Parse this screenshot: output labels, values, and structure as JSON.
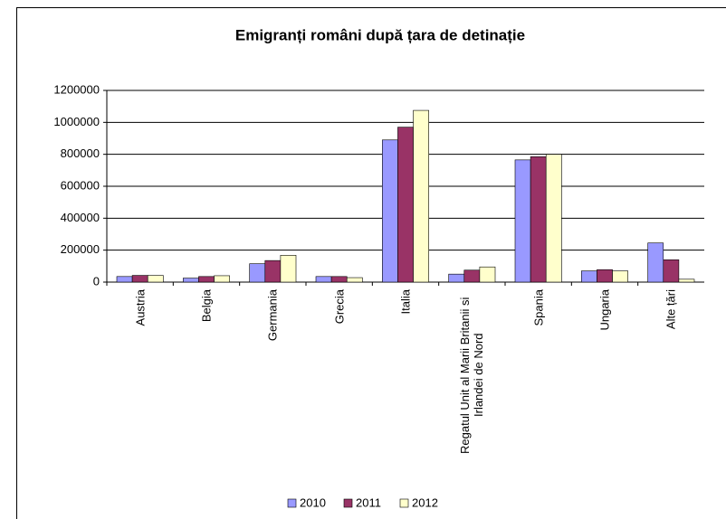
{
  "chart_data": {
    "type": "bar",
    "title": "Emigranți români după țara de detinație",
    "categories": [
      "Austria",
      "Belgia",
      "Germania",
      "Grecia",
      "Italia",
      "Regatul Unit al Marii Britanii si Irlandei de Nord",
      "Spania",
      "Ungaria",
      "Alte țări"
    ],
    "series": [
      {
        "name": "2010",
        "color": "#9999ff",
        "values": [
          35000,
          25000,
          115000,
          35000,
          890000,
          50000,
          765000,
          70000,
          245000
        ]
      },
      {
        "name": "2011",
        "color": "#993366",
        "values": [
          42000,
          35000,
          135000,
          35000,
          970000,
          75000,
          785000,
          78000,
          140000
        ]
      },
      {
        "name": "2012",
        "color": "#ffffcc",
        "values": [
          42000,
          40000,
          168000,
          28000,
          1075000,
          95000,
          800000,
          70000,
          18000
        ]
      }
    ],
    "ylim": [
      0,
      1200000
    ],
    "yticks": [
      0,
      200000,
      400000,
      600000,
      800000,
      1000000,
      1200000
    ],
    "grid": true,
    "legend": "bottom"
  }
}
